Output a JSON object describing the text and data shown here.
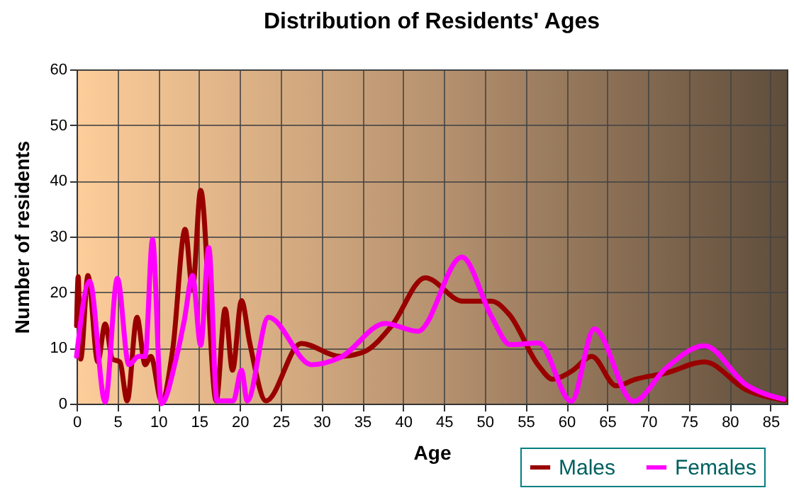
{
  "chart_data": {
    "type": "line",
    "title": "Distribution of Residents' Ages",
    "xlabel": "Age",
    "ylabel": "Number of residents",
    "xlim": [
      0,
      87
    ],
    "xticks": [
      0,
      5,
      10,
      15,
      20,
      25,
      30,
      35,
      40,
      45,
      50,
      55,
      60,
      65,
      70,
      75,
      80,
      85
    ],
    "ylim": [
      0,
      60
    ],
    "yticks": [
      0,
      10,
      20,
      30,
      40,
      50,
      60
    ],
    "grid": true,
    "legend": "bottom right",
    "series": [
      {
        "name": "Males",
        "color": "#990000",
        "x": [
          0,
          0.2,
          0.5,
          1.4,
          2.6,
          3.5,
          4.4,
          5.3,
          6.2,
          7.4,
          8.4,
          9.1,
          10.4,
          11.8,
          13.3,
          14.2,
          15.2,
          17.1,
          18.2,
          19.1,
          20.2,
          21.2,
          23.2,
          27.5,
          32.3,
          35.2,
          38.6,
          42.7,
          47.3,
          50.8,
          53,
          56.6,
          58.3,
          60.7,
          63.1,
          66.1,
          68.5,
          72.2,
          76.9,
          82,
          86.7
        ],
        "values": [
          14,
          22.8,
          8,
          23,
          7.5,
          14.3,
          8,
          7.5,
          0.5,
          15.5,
          7,
          8.5,
          0.5,
          10,
          31.3,
          20.5,
          38.3,
          0.5,
          17,
          6,
          18.5,
          11,
          0.5,
          10.8,
          8.5,
          9.3,
          14,
          22.6,
          18.4,
          18.4,
          16,
          6.8,
          4.4,
          5.9,
          8.5,
          3.2,
          4.4,
          5.5,
          7.5,
          2.5,
          0.6
        ]
      },
      {
        "name": "Females",
        "color": "#ff00ff",
        "x": [
          0,
          1.6,
          3.5,
          5,
          6.4,
          7.6,
          8.4,
          9.3,
          10.4,
          12.1,
          13.2,
          14.2,
          15.2,
          16.2,
          17.2,
          19.2,
          20.2,
          20.9,
          23.5,
          28.8,
          32.3,
          37.8,
          41.8,
          47.2,
          50.8,
          53.1,
          56.6,
          60.6,
          63.4,
          68.2,
          72.2,
          76.9,
          82,
          86.6
        ],
        "values": [
          8.5,
          22,
          0.3,
          22.5,
          7,
          8.5,
          8.5,
          29.5,
          0,
          7.5,
          15,
          23,
          10.5,
          28,
          0.5,
          0.5,
          6,
          0.5,
          15.5,
          7,
          8.3,
          14.4,
          13,
          26.3,
          15.7,
          10.6,
          10.9,
          0.4,
          13.4,
          0.4,
          6.4,
          10.4,
          3.4,
          0.8
        ]
      }
    ]
  }
}
